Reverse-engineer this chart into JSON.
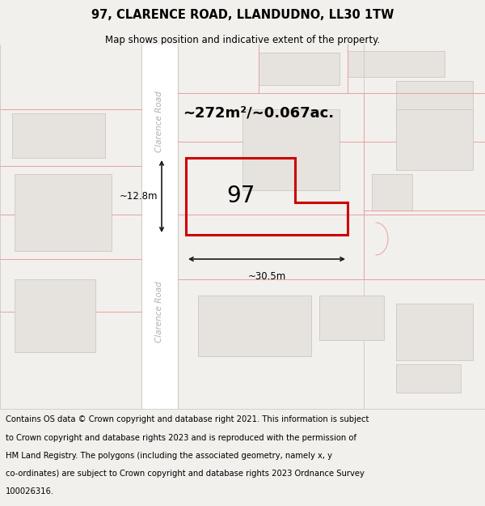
{
  "title": "97, CLARENCE ROAD, LLANDUDNO, LL30 1TW",
  "subtitle": "Map shows position and indicative extent of the property.",
  "area_text": "~272m²/~0.067ac.",
  "width_label": "~30.5m",
  "height_label": "~12.8m",
  "number_label": "97",
  "footer_lines": [
    "Contains OS data © Crown copyright and database right 2021. This information is subject",
    "to Crown copyright and database rights 2023 and is reproduced with the permission of",
    "HM Land Registry. The polygons (including the associated geometry, namely x, y",
    "co-ordinates) are subject to Crown copyright and database rights 2023 Ordnance Survey",
    "100026316."
  ],
  "bg_color": "#f2f0ed",
  "map_bg": "#f2f0ed",
  "road_color": "#ffffff",
  "building_fill": "#e6e3de",
  "building_edge": "#c8c0b8",
  "highlight_color": "#cc0000",
  "dim_line_color": "#1a1a1a",
  "other_prop_color": "#e8a0a0",
  "road_label_color": "#b0b0b0",
  "text_color": "#000000",
  "footer_bg": "#ffffff",
  "title_fontsize": 10.5,
  "subtitle_fontsize": 8.5,
  "area_fontsize": 13,
  "num_fontsize": 20,
  "dim_fontsize": 8.5,
  "road_label_fontsize": 7.5,
  "footer_fontsize": 7.2
}
